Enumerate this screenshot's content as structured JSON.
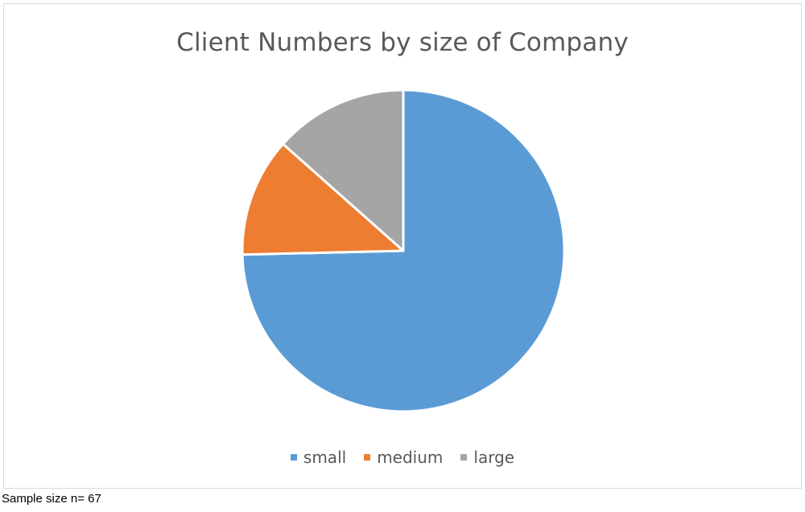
{
  "chart_data": {
    "type": "pie",
    "title": "Client Numbers by size of Company",
    "categories": [
      "small",
      "medium",
      "large"
    ],
    "values": [
      50,
      8,
      9
    ],
    "colors": [
      "#5b9bd5",
      "#ed7d31",
      "#a5a5a5"
    ],
    "legend_position": "bottom"
  },
  "footnote": "Sample size n= 67"
}
